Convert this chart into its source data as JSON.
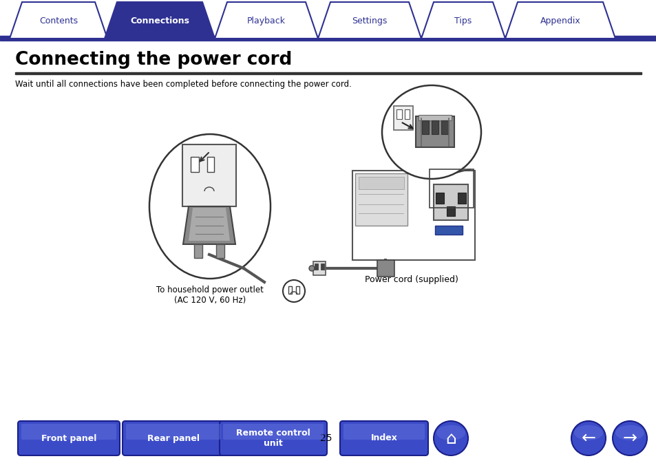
{
  "bg_color": "#ffffff",
  "tab_bar_color": "#2e3192",
  "tab_labels": [
    "Contents",
    "Connections",
    "Playback",
    "Settings",
    "Tips",
    "Appendix"
  ],
  "tab_active_index": 1,
  "tab_active_bg": "#2e3192",
  "tab_inactive_bg": "#ffffff",
  "tab_text_color_active": "#ffffff",
  "tab_text_color_inactive": "#2e3192",
  "title": "Connecting the power cord",
  "title_color": "#000000",
  "subtitle": "Wait until all connections have been completed before connecting the power cord.",
  "subtitle_color": "#000000",
  "bottom_buttons": [
    "Front panel",
    "Rear panel",
    "Remote control\nunit",
    "Index"
  ],
  "bottom_page_num": "25",
  "button_bg": "#3b4bc8",
  "button_text_color": "#ffffff",
  "label_household": "To household power outlet\n(AC 120 V, 60 Hz)",
  "label_power_cord": "Power cord (supplied)",
  "divider_color": "#666666"
}
